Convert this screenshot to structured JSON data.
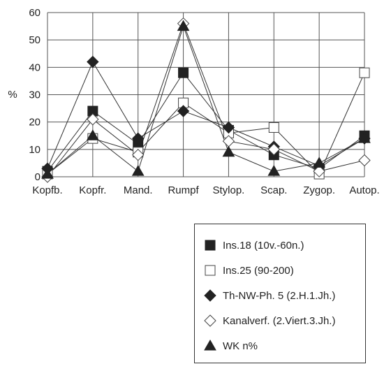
{
  "chart_data": {
    "type": "line",
    "categories": [
      "Kopfb.",
      "Kopfr.",
      "Mand.",
      "Rumpf",
      "Stylop.",
      "Scap.",
      "Zygop.",
      "Autop."
    ],
    "ylabel": "%",
    "ylim": [
      0,
      60
    ],
    "yticks": [
      0,
      10,
      20,
      30,
      40,
      50,
      60
    ],
    "grid": true,
    "legend_position": "bottom-right",
    "series": [
      {
        "name": "Ins.18 (10v.-60n.)",
        "marker": "filled-square",
        "values": [
          2,
          24,
          12,
          38,
          17,
          8,
          3,
          15
        ]
      },
      {
        "name": "Ins.25 (90-200)",
        "marker": "open-square",
        "values": [
          1,
          14,
          9,
          27,
          16,
          18,
          1,
          38
        ]
      },
      {
        "name": "Th-NW-Ph. 5 (2.H.1.Jh.)",
        "marker": "filled-diamond",
        "values": [
          3,
          42,
          14,
          24,
          18,
          11,
          4,
          14
        ]
      },
      {
        "name": "Kanalverf. (2.Viert.3.Jh.)",
        "marker": "open-diamond",
        "values": [
          0,
          21,
          8,
          56,
          13,
          10,
          2,
          6
        ]
      },
      {
        "name": "WK n%",
        "marker": "filled-triangle",
        "values": [
          1,
          15,
          2,
          55,
          9,
          2,
          5,
          14
        ]
      }
    ]
  }
}
